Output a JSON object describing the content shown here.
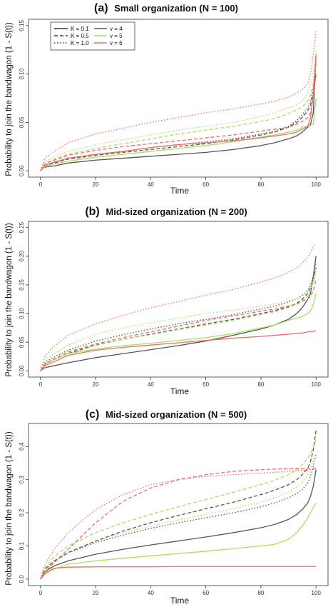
{
  "chart_data": [
    {
      "type": "line",
      "panel_label": "(a)",
      "title": "Small organization (N = 100)",
      "xlabel": "Time",
      "ylabel": "Probability to join the bandwagon (1 - S(t))",
      "xlim": [
        0,
        100
      ],
      "ylim": [
        0,
        0.15
      ],
      "xticks": [
        0,
        20,
        40,
        60,
        80,
        100
      ],
      "yticks": [
        0.0,
        0.05,
        0.1,
        0.15
      ],
      "ytick_labels": [
        "0.00",
        "0.05",
        "0.10",
        "0.15"
      ],
      "grid": false,
      "legend": {
        "position": "top-left",
        "entries": [
          {
            "label": "K = 0.1",
            "linestyle": "solid"
          },
          {
            "label": "K = 0.5",
            "linestyle": "dashed"
          },
          {
            "label": "K = 1.0",
            "linestyle": "dotted"
          },
          {
            "label": "v = 4",
            "color": "#555555"
          },
          {
            "label": "v = 5",
            "color": "#a8e05f"
          },
          {
            "label": "v = 6",
            "color": "#f26b6b"
          }
        ]
      },
      "x": [
        0,
        1,
        2,
        5,
        10,
        20,
        30,
        40,
        50,
        60,
        70,
        80,
        85,
        90,
        93,
        95,
        97,
        98,
        99,
        100
      ],
      "series": [
        {
          "name": "K = 0.1, v = 4",
          "color": "#555555",
          "dash": "solid",
          "values": [
            0.0,
            0.003,
            0.004,
            0.005,
            0.008,
            0.011,
            0.013,
            0.015,
            0.017,
            0.019,
            0.022,
            0.026,
            0.029,
            0.033,
            0.036,
            0.04,
            0.045,
            0.048,
            0.06,
            0.12
          ]
        },
        {
          "name": "K = 0.5, v = 4",
          "color": "#555555",
          "dash": "dashed",
          "values": [
            0.0,
            0.004,
            0.006,
            0.008,
            0.012,
            0.016,
            0.019,
            0.022,
            0.025,
            0.028,
            0.032,
            0.037,
            0.04,
            0.045,
            0.05,
            0.055,
            0.062,
            0.068,
            0.08,
            0.1
          ]
        },
        {
          "name": "K = 1.0, v = 4",
          "color": "#555555",
          "dash": "dotted",
          "values": [
            0.0,
            0.004,
            0.006,
            0.009,
            0.013,
            0.017,
            0.02,
            0.024,
            0.027,
            0.03,
            0.033,
            0.038,
            0.041,
            0.046,
            0.052,
            0.058,
            0.065,
            0.072,
            0.085,
            0.11
          ]
        },
        {
          "name": "K = 0.1, v = 5",
          "color": "#a8e05f",
          "dash": "solid",
          "values": [
            0.0,
            0.003,
            0.005,
            0.007,
            0.01,
            0.014,
            0.017,
            0.02,
            0.023,
            0.026,
            0.03,
            0.035,
            0.037,
            0.04,
            0.042,
            0.045,
            0.046,
            0.047,
            0.048,
            0.075
          ]
        },
        {
          "name": "K = 0.5, v = 5",
          "color": "#a8e05f",
          "dash": "dashed",
          "values": [
            0.0,
            0.005,
            0.008,
            0.012,
            0.017,
            0.023,
            0.028,
            0.033,
            0.038,
            0.042,
            0.046,
            0.051,
            0.054,
            0.059,
            0.063,
            0.066,
            0.072,
            0.078,
            0.09,
            0.11
          ]
        },
        {
          "name": "K = 1.0, v = 5",
          "color": "#a8e05f",
          "dash": "dotted",
          "values": [
            0.0,
            0.006,
            0.01,
            0.014,
            0.02,
            0.027,
            0.032,
            0.037,
            0.042,
            0.046,
            0.05,
            0.056,
            0.06,
            0.065,
            0.068,
            0.072,
            0.08,
            0.09,
            0.1,
            0.125
          ]
        },
        {
          "name": "K = 0.1, v = 6",
          "color": "#f26b6b",
          "dash": "solid",
          "values": [
            0.0,
            0.004,
            0.006,
            0.009,
            0.013,
            0.017,
            0.02,
            0.024,
            0.027,
            0.029,
            0.031,
            0.034,
            0.036,
            0.038,
            0.04,
            0.043,
            0.046,
            0.055,
            0.08,
            0.12
          ]
        },
        {
          "name": "K = 0.5, v = 6",
          "color": "#f26b6b",
          "dash": "dashed",
          "values": [
            0.0,
            0.005,
            0.008,
            0.011,
            0.016,
            0.021,
            0.025,
            0.028,
            0.031,
            0.034,
            0.037,
            0.041,
            0.043,
            0.045,
            0.048,
            0.051,
            0.055,
            0.06,
            0.075,
            0.1
          ]
        },
        {
          "name": "K = 1.0, v = 6",
          "color": "#f26b6b",
          "dash": "dotted",
          "values": [
            0.0,
            0.009,
            0.014,
            0.02,
            0.029,
            0.038,
            0.044,
            0.05,
            0.055,
            0.06,
            0.064,
            0.069,
            0.072,
            0.076,
            0.08,
            0.084,
            0.09,
            0.1,
            0.12,
            0.145
          ]
        }
      ]
    },
    {
      "type": "line",
      "panel_label": "(b)",
      "title": "Mid-sized organization (N = 200)",
      "xlabel": "Time",
      "ylabel": "Probability to join the bandwagon (1 - S(t))",
      "xlim": [
        0,
        100
      ],
      "ylim": [
        0,
        0.25
      ],
      "xticks": [
        0,
        20,
        40,
        60,
        80,
        100
      ],
      "yticks": [
        0.0,
        0.05,
        0.1,
        0.15,
        0.2,
        0.25
      ],
      "ytick_labels": [
        "0.00",
        "0.05",
        "0.10",
        "0.15",
        "0.20",
        "0.25"
      ],
      "grid": false,
      "x": [
        0,
        1,
        2,
        5,
        10,
        20,
        30,
        40,
        50,
        60,
        70,
        80,
        85,
        90,
        93,
        95,
        97,
        98,
        99,
        100
      ],
      "series": [
        {
          "name": "K = 0.1, v = 4",
          "color": "#555555",
          "dash": "solid",
          "values": [
            0.0,
            0.004,
            0.006,
            0.009,
            0.014,
            0.023,
            0.03,
            0.037,
            0.044,
            0.052,
            0.062,
            0.073,
            0.08,
            0.09,
            0.1,
            0.11,
            0.125,
            0.135,
            0.165,
            0.2
          ]
        },
        {
          "name": "K = 0.5, v = 4",
          "color": "#555555",
          "dash": "dashed",
          "values": [
            0.0,
            0.008,
            0.013,
            0.02,
            0.03,
            0.045,
            0.055,
            0.064,
            0.073,
            0.082,
            0.09,
            0.1,
            0.105,
            0.112,
            0.118,
            0.125,
            0.135,
            0.145,
            0.16,
            0.18
          ]
        },
        {
          "name": "K = 1.0, v = 4",
          "color": "#555555",
          "dash": "dotted",
          "values": [
            0.0,
            0.01,
            0.016,
            0.024,
            0.036,
            0.052,
            0.063,
            0.073,
            0.082,
            0.09,
            0.098,
            0.108,
            0.113,
            0.12,
            0.126,
            0.132,
            0.14,
            0.15,
            0.165,
            0.19
          ]
        },
        {
          "name": "K = 0.1, v = 5",
          "color": "#a8e05f",
          "dash": "solid",
          "values": [
            0.0,
            0.008,
            0.013,
            0.02,
            0.03,
            0.038,
            0.044,
            0.048,
            0.053,
            0.058,
            0.065,
            0.075,
            0.08,
            0.088,
            0.092,
            0.095,
            0.1,
            0.105,
            0.115,
            0.135
          ]
        },
        {
          "name": "K = 0.5, v = 5",
          "color": "#a8e05f",
          "dash": "dashed",
          "values": [
            0.0,
            0.008,
            0.013,
            0.02,
            0.032,
            0.046,
            0.055,
            0.063,
            0.072,
            0.08,
            0.088,
            0.098,
            0.103,
            0.11,
            0.116,
            0.122,
            0.13,
            0.14,
            0.155,
            0.175
          ]
        },
        {
          "name": "K = 1.0, v = 5",
          "color": "#a8e05f",
          "dash": "dotted",
          "values": [
            0.0,
            0.012,
            0.02,
            0.03,
            0.045,
            0.064,
            0.075,
            0.084,
            0.092,
            0.1,
            0.106,
            0.113,
            0.117,
            0.122,
            0.126,
            0.13,
            0.138,
            0.145,
            0.16,
            0.185
          ]
        },
        {
          "name": "K = 0.1, v = 6",
          "color": "#f26b6b",
          "dash": "solid",
          "values": [
            0.0,
            0.006,
            0.01,
            0.016,
            0.027,
            0.036,
            0.041,
            0.045,
            0.049,
            0.053,
            0.057,
            0.06,
            0.062,
            0.064,
            0.065,
            0.066,
            0.068,
            0.069,
            0.069,
            0.07
          ]
        },
        {
          "name": "K = 0.5, v = 6",
          "color": "#f26b6b",
          "dash": "dashed",
          "values": [
            0.0,
            0.008,
            0.013,
            0.021,
            0.033,
            0.047,
            0.058,
            0.068,
            0.078,
            0.088,
            0.096,
            0.104,
            0.108,
            0.113,
            0.117,
            0.121,
            0.126,
            0.13,
            0.14,
            0.16
          ]
        },
        {
          "name": "K = 1.0, v = 6",
          "color": "#f26b6b",
          "dash": "dotted",
          "values": [
            0.0,
            0.018,
            0.028,
            0.043,
            0.062,
            0.082,
            0.097,
            0.11,
            0.121,
            0.132,
            0.142,
            0.155,
            0.162,
            0.172,
            0.18,
            0.188,
            0.198,
            0.206,
            0.218,
            0.22
          ]
        }
      ]
    },
    {
      "type": "line",
      "panel_label": "(c)",
      "title": "Mid-sized organization (N = 500)",
      "xlabel": "Time",
      "ylabel": "Probability to join the bandwagon (1 - S(t))",
      "xlim": [
        0,
        100
      ],
      "ylim": [
        0,
        0.45
      ],
      "xticks": [
        0,
        20,
        40,
        60,
        80,
        100
      ],
      "yticks": [
        0.0,
        0.1,
        0.2,
        0.3,
        0.4
      ],
      "ytick_labels": [
        "0.0",
        "0.1",
        "0.2",
        "0.3",
        "0.4"
      ],
      "grid": false,
      "x": [
        0,
        1,
        2,
        5,
        10,
        20,
        30,
        40,
        50,
        60,
        70,
        80,
        85,
        90,
        93,
        95,
        97,
        98,
        99,
        100
      ],
      "series": [
        {
          "name": "K = 0.1, v = 4",
          "color": "#555555",
          "dash": "solid",
          "values": [
            0.0,
            0.015,
            0.025,
            0.04,
            0.055,
            0.075,
            0.09,
            0.103,
            0.115,
            0.127,
            0.14,
            0.155,
            0.165,
            0.18,
            0.195,
            0.21,
            0.23,
            0.25,
            0.28,
            0.33
          ]
        },
        {
          "name": "K = 0.5, v = 4",
          "color": "#555555",
          "dash": "dashed",
          "values": [
            0.0,
            0.02,
            0.033,
            0.055,
            0.08,
            0.115,
            0.145,
            0.17,
            0.192,
            0.212,
            0.232,
            0.255,
            0.268,
            0.285,
            0.3,
            0.315,
            0.335,
            0.355,
            0.39,
            0.45
          ]
        },
        {
          "name": "K = 1.0, v = 4",
          "color": "#555555",
          "dash": "dotted",
          "values": [
            0.0,
            0.02,
            0.033,
            0.055,
            0.078,
            0.11,
            0.133,
            0.153,
            0.17,
            0.185,
            0.2,
            0.218,
            0.23,
            0.245,
            0.258,
            0.27,
            0.29,
            0.31,
            0.34,
            0.38
          ]
        },
        {
          "name": "K = 0.1, v = 5",
          "color": "#a8e05f",
          "dash": "solid",
          "values": [
            0.0,
            0.01,
            0.018,
            0.03,
            0.045,
            0.055,
            0.063,
            0.07,
            0.077,
            0.084,
            0.092,
            0.1,
            0.105,
            0.12,
            0.14,
            0.16,
            0.185,
            0.2,
            0.215,
            0.23
          ]
        },
        {
          "name": "K = 0.5, v = 5",
          "color": "#a8e05f",
          "dash": "dashed",
          "values": [
            0.0,
            0.025,
            0.04,
            0.068,
            0.1,
            0.14,
            0.17,
            0.195,
            0.218,
            0.24,
            0.262,
            0.285,
            0.298,
            0.315,
            0.33,
            0.345,
            0.365,
            0.38,
            0.395,
            0.42
          ]
        },
        {
          "name": "K = 1.0, v = 5",
          "color": "#a8e05f",
          "dash": "dotted",
          "values": [
            0.0,
            0.018,
            0.03,
            0.05,
            0.078,
            0.113,
            0.14,
            0.16,
            0.178,
            0.195,
            0.213,
            0.232,
            0.245,
            0.262,
            0.278,
            0.292,
            0.315,
            0.335,
            0.36,
            0.38
          ]
        },
        {
          "name": "K = 0.1, v = 6",
          "color": "#f26b6b",
          "dash": "solid",
          "values": [
            0.0,
            0.01,
            0.02,
            0.033,
            0.036,
            0.037,
            0.037,
            0.037,
            0.038,
            0.038,
            0.038,
            0.038,
            0.038,
            0.038,
            0.038,
            0.038,
            0.038,
            0.038,
            0.038,
            0.038
          ]
        },
        {
          "name": "K = 0.5, v = 6",
          "color": "#f26b6b",
          "dash": "dashed",
          "values": [
            0.0,
            0.015,
            0.025,
            0.05,
            0.09,
            0.17,
            0.235,
            0.275,
            0.3,
            0.315,
            0.325,
            0.33,
            0.332,
            0.333,
            0.333,
            0.333,
            0.333,
            0.334,
            0.334,
            0.335
          ]
        },
        {
          "name": "K = 1.0, v = 6",
          "color": "#f26b6b",
          "dash": "dotted",
          "values": [
            0.0,
            0.03,
            0.05,
            0.09,
            0.14,
            0.21,
            0.255,
            0.285,
            0.3,
            0.31,
            0.315,
            0.32,
            0.322,
            0.325,
            0.327,
            0.328,
            0.329,
            0.33,
            0.331,
            0.332
          ]
        }
      ]
    }
  ]
}
